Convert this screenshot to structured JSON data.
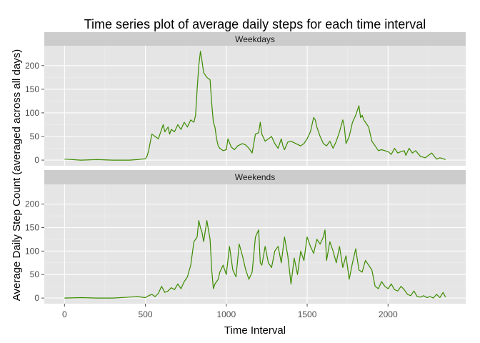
{
  "chart_data": {
    "type": "line",
    "title": "Time series plot of average daily steps for each time interval",
    "xlabel": "Time Interval",
    "ylabel": "Average Daily Step Count (averaged across all days)",
    "xlim": [
      -125,
      2480
    ],
    "ylim": [
      -12,
      242
    ],
    "x_ticks": [
      0,
      500,
      1000,
      1500,
      2000
    ],
    "y_ticks": [
      0,
      50,
      100,
      150,
      200
    ],
    "grid": true,
    "legend": "none",
    "colors": {
      "line": "#3d8c00",
      "panel": "#e5e5e5",
      "strip": "#cccccc"
    },
    "panels": [
      {
        "label": "Weekdays",
        "series": [
          {
            "x": [
              0,
              100,
              200,
              300,
              400,
              450,
              500,
              510,
              520,
              540,
              560,
              580,
              600,
              610,
              620,
              640,
              650,
              660,
              680,
              700,
              710,
              720,
              740,
              760,
              780,
              800,
              810,
              820,
              830,
              840,
              850,
              860,
              880,
              900,
              910,
              920,
              930,
              940,
              950,
              960,
              980,
              1000,
              1010,
              1030,
              1050,
              1070,
              1100,
              1120,
              1140,
              1160,
              1180,
              1200,
              1210,
              1220,
              1240,
              1260,
              1280,
              1300,
              1320,
              1340,
              1350,
              1360,
              1380,
              1400,
              1430,
              1460,
              1480,
              1500,
              1520,
              1540,
              1550,
              1560,
              1580,
              1600,
              1620,
              1640,
              1660,
              1680,
              1700,
              1720,
              1730,
              1740,
              1760,
              1780,
              1800,
              1820,
              1830,
              1840,
              1850,
              1860,
              1880,
              1900,
              1920,
              1940,
              1960,
              2000,
              2020,
              2040,
              2060,
              2080,
              2100,
              2110,
              2130,
              2150,
              2170,
              2200,
              2230,
              2250,
              2270,
              2300,
              2320,
              2340,
              2355
            ],
            "values": [
              2,
              0,
              1,
              0,
              0,
              1,
              3,
              8,
              20,
              55,
              50,
              45,
              65,
              75,
              60,
              70,
              55,
              65,
              60,
              75,
              70,
              65,
              80,
              70,
              85,
              80,
              95,
              150,
              200,
              230,
              210,
              185,
              175,
              170,
              120,
              80,
              70,
              45,
              30,
              25,
              20,
              22,
              45,
              28,
              22,
              30,
              35,
              32,
              25,
              15,
              55,
              58,
              80,
              55,
              40,
              45,
              50,
              35,
              25,
              45,
              30,
              22,
              38,
              40,
              35,
              30,
              35,
              45,
              60,
              90,
              85,
              70,
              50,
              35,
              30,
              40,
              25,
              40,
              60,
              85,
              70,
              35,
              50,
              80,
              95,
              115,
              90,
              95,
              85,
              80,
              70,
              40,
              30,
              20,
              22,
              18,
              12,
              25,
              15,
              18,
              20,
              10,
              25,
              15,
              20,
              8,
              5,
              10,
              15,
              2,
              5,
              3,
              1
            ]
          }
        ]
      },
      {
        "label": "Weekends",
        "series": [
          {
            "x": [
              0,
              100,
              200,
              300,
              400,
              450,
              500,
              520,
              540,
              560,
              580,
              600,
              620,
              640,
              660,
              680,
              700,
              720,
              740,
              760,
              780,
              800,
              820,
              830,
              840,
              850,
              860,
              880,
              900,
              910,
              920,
              930,
              940,
              950,
              960,
              980,
              1000,
              1020,
              1040,
              1060,
              1080,
              1100,
              1120,
              1140,
              1160,
              1180,
              1200,
              1210,
              1220,
              1240,
              1260,
              1280,
              1300,
              1320,
              1340,
              1360,
              1380,
              1400,
              1420,
              1440,
              1460,
              1480,
              1500,
              1520,
              1540,
              1560,
              1580,
              1600,
              1610,
              1620,
              1640,
              1660,
              1680,
              1700,
              1720,
              1740,
              1760,
              1780,
              1800,
              1820,
              1840,
              1860,
              1880,
              1900,
              1920,
              1940,
              1960,
              1980,
              2000,
              2020,
              2040,
              2060,
              2080,
              2100,
              2120,
              2140,
              2160,
              2180,
              2200,
              2220,
              2240,
              2260,
              2280,
              2300,
              2320,
              2340,
              2355
            ],
            "values": [
              0,
              1,
              0,
              0,
              2,
              3,
              1,
              5,
              8,
              3,
              10,
              25,
              12,
              15,
              22,
              18,
              30,
              20,
              35,
              45,
              70,
              120,
              130,
              165,
              150,
              140,
              120,
              165,
              125,
              60,
              20,
              30,
              35,
              40,
              55,
              70,
              50,
              110,
              60,
              45,
              115,
              90,
              60,
              40,
              55,
              130,
              145,
              75,
              70,
              110,
              75,
              65,
              100,
              110,
              75,
              130,
              90,
              30,
              85,
              50,
              100,
              80,
              130,
              110,
              95,
              125,
              115,
              130,
              145,
              80,
              120,
              100,
              75,
              110,
              65,
              90,
              40,
              75,
              105,
              60,
              55,
              80,
              70,
              60,
              25,
              20,
              35,
              25,
              20,
              30,
              18,
              15,
              25,
              18,
              8,
              5,
              15,
              3,
              2,
              5,
              1,
              3,
              0,
              8,
              1,
              12,
              2
            ]
          }
        ]
      }
    ]
  }
}
